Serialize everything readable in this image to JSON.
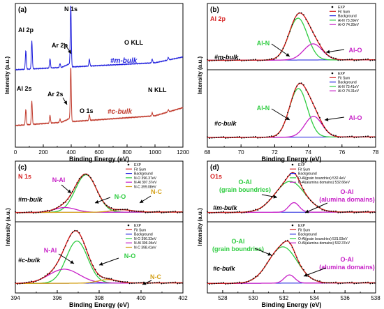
{
  "figure": {
    "axis_label_x": "Binding Energy (eV)",
    "axis_label_y": "Intensity (a.u.)"
  },
  "chart_data": [
    {
      "panel": "(a)",
      "type": "line",
      "title": "",
      "xlabel": "Binding Energy (eV)",
      "ylabel": "Intensity (a.u.)",
      "xlim": [
        0,
        1200
      ],
      "xticks": [
        "0",
        "200",
        "400",
        "600",
        "800",
        "1000",
        "1200"
      ],
      "grid": false,
      "series": [
        {
          "name": "#m-bulk",
          "color": "#1a1adc"
        },
        {
          "name": "#c-bulk",
          "color": "#c0392b"
        }
      ],
      "annotations": [
        "Al 2p",
        "Al 2s",
        "Ar 2p",
        "Ar 2s",
        "N 1s",
        "O 1s",
        "O KLL",
        "N KLL"
      ]
    },
    {
      "panel": "(b)",
      "type": "line",
      "title": "Al 2p",
      "xlabel": "Binding Energy (eV)",
      "ylabel": "Intensity (a.u.)",
      "xlim": [
        68,
        78
      ],
      "xticks": [
        "68",
        "70",
        "72",
        "74",
        "76",
        "78"
      ],
      "subplots": [
        {
          "sample": "#m-bulk",
          "legend": [
            "EXP",
            "Fit Sum",
            "Background",
            "Al-N 73.39eV",
            "Al-O 74.28eV"
          ],
          "labels": [
            "Al-N",
            "Al-O"
          ],
          "components": [
            {
              "name": "Al-N",
              "center": 73.39,
              "height": 0.78,
              "fwhm": 1.3
            },
            {
              "name": "Al-O",
              "center": 74.28,
              "height": 0.3,
              "fwhm": 1.3
            }
          ]
        },
        {
          "sample": "#c-bulk",
          "legend": [
            "EXP",
            "Fit Sum",
            "Background",
            "Al-N 73.41eV",
            "Al-O 74.31eV"
          ],
          "labels": [
            "Al-N",
            "Al-O"
          ],
          "components": [
            {
              "name": "Al-N",
              "center": 73.41,
              "height": 0.75,
              "fwhm": 1.25
            },
            {
              "name": "Al-O",
              "center": 74.31,
              "height": 0.32,
              "fwhm": 1.2
            }
          ]
        }
      ]
    },
    {
      "panel": "(c)",
      "type": "line",
      "title": "N 1s",
      "xlabel": "Binding Energy (eV)",
      "ylabel": "Intensity (a.u.)",
      "xlim": [
        394,
        402
      ],
      "xticks": [
        "394",
        "396",
        "398",
        "400",
        "402"
      ],
      "subplots": [
        {
          "sample": "#m-bulk",
          "legend": [
            "EXP",
            "Fit Sum",
            "Background",
            "N-O 396.37eV",
            "N-Al 397.37eV",
            "N-C 399.08eV"
          ],
          "labels": [
            "N-O",
            "N-Al",
            "N-C"
          ],
          "components": [
            {
              "name": "N-Al",
              "center": 397.37,
              "height": 0.78,
              "fwhm": 1.2
            },
            {
              "name": "N-O",
              "center": 396.37,
              "height": 0.1,
              "fwhm": 1.2
            },
            {
              "name": "N-C",
              "center": 399.08,
              "height": 0.05,
              "fwhm": 1.2
            }
          ]
        },
        {
          "sample": "#c-bulk",
          "legend": [
            "EXP",
            "Fit Sum",
            "Background",
            "N-O 396.33eV",
            "N-Al 396.94eV",
            "N-C 398.41eV"
          ],
          "labels": [
            "N-O",
            "N-Al",
            "N-C"
          ],
          "components": [
            {
              "name": "N-Al",
              "center": 396.94,
              "height": 0.72,
              "fwhm": 1.2
            },
            {
              "name": "N-O",
              "center": 396.33,
              "height": 0.24,
              "fwhm": 1.7
            },
            {
              "name": "N-C",
              "center": 398.41,
              "height": 0.06,
              "fwhm": 1.1
            }
          ]
        }
      ]
    },
    {
      "panel": "(d)",
      "type": "line",
      "title": "O1s",
      "xlabel": "Binding Energy (eV)",
      "ylabel": "Intensity (a.u.)",
      "xlim": [
        527,
        538
      ],
      "xticks": [
        "528",
        "530",
        "532",
        "534",
        "536",
        "538"
      ],
      "subplots": [
        {
          "sample": "#m-bulk",
          "legend": [
            "EXP",
            "Fit Sum",
            "Background",
            "O-Al(grain boundries) 532.4eV",
            "O-Al(alumina domains) 532.66eV"
          ],
          "labels": [
            "O-Al\n(grain boundries)",
            "O-Al\n(alumina domains)"
          ],
          "components": [
            {
              "name": "O-Al(grain boundries)",
              "center": 532.4,
              "height": 0.64,
              "fwhm": 2.3
            },
            {
              "name": "O-Al(alumina domains)",
              "center": 532.66,
              "height": 0.2,
              "fwhm": 0.8
            }
          ]
        },
        {
          "sample": "#c-bulk",
          "legend": [
            "EXP",
            "Fit Sum",
            "Background",
            "O-Al(grain boundries) 531.93eV",
            "O-Al(alumina domains) 532.37eV"
          ],
          "labels": [
            "O-Al\n(grain boundries)",
            "O-Al\n(alumina domains)"
          ],
          "components": [
            {
              "name": "O-Al(grain boundries)",
              "center": 531.93,
              "height": 0.62,
              "fwhm": 2.2
            },
            {
              "name": "O-Al(alumina domains)",
              "center": 532.37,
              "height": 0.14,
              "fwhm": 0.8
            }
          ]
        }
      ]
    }
  ]
}
